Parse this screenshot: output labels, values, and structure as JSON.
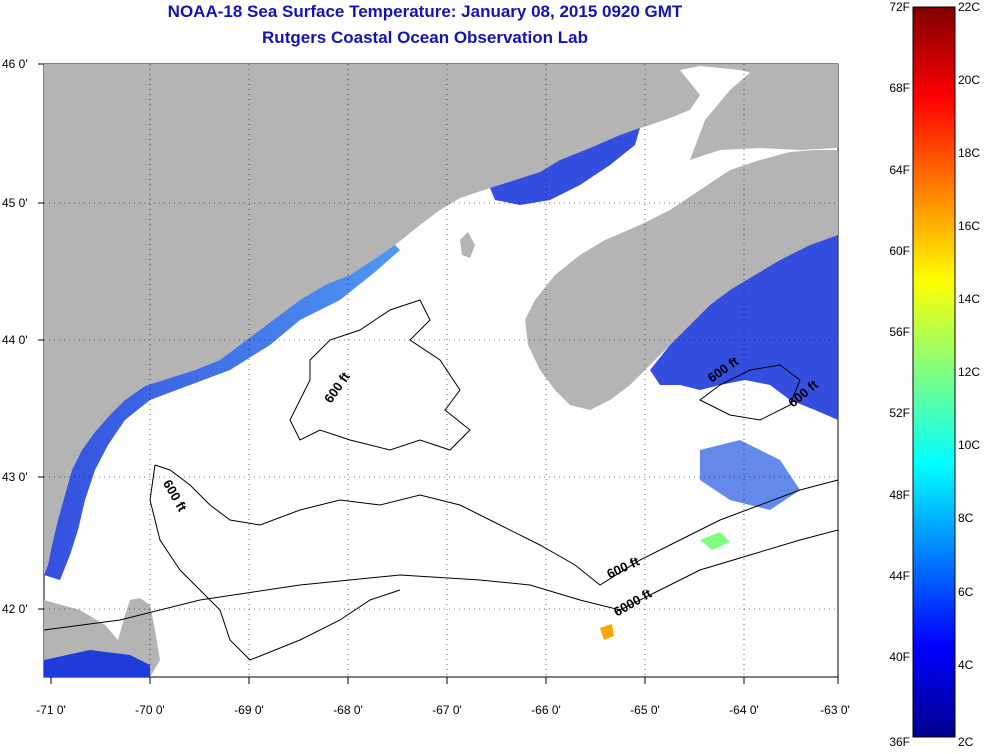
{
  "title_line1": "NOAA-18 Sea Surface Temperature:  January 08, 2015 0920 GMT",
  "title_line2": "Rutgers Coastal Ocean Observation Lab",
  "colors": {
    "land": "#b4b4b4",
    "ocean_no_data": "#ffffff",
    "title": "#1414b4",
    "cold_sst": "#1e3cdc"
  },
  "y_axis_labels": [
    "46 0'",
    "45 0'",
    "44 0'",
    "43 0'",
    "42 0'"
  ],
  "x_axis_labels": [
    "-71 0'",
    "-70 0'",
    "-69 0'",
    "-68 0'",
    "-67 0'",
    "-66 0'",
    "-65 0'",
    "-64 0'",
    "-63 0'"
  ],
  "colorbar": {
    "fahrenheit_labels": [
      "72F",
      "68F",
      "64F",
      "60F",
      "56F",
      "52F",
      "48F",
      "44F",
      "40F",
      "36F"
    ],
    "celsius_labels": [
      "22C",
      "20C",
      "18C",
      "16C",
      "14C",
      "12C",
      "10C",
      "8C",
      "6C",
      "4C",
      "2C"
    ]
  },
  "contour_labels": [
    "600 ft",
    "600 ft",
    "600 ft",
    "600 ft",
    "600 ft",
    "6000 ft"
  ]
}
